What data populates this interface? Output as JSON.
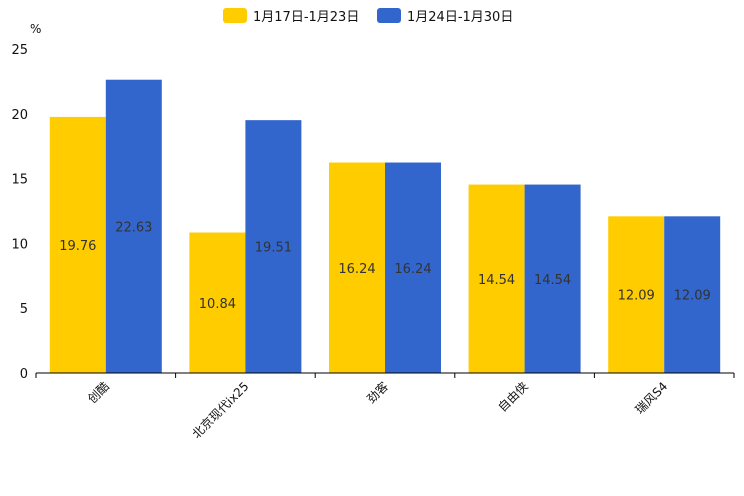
{
  "chart_data": {
    "type": "bar",
    "unit_label": "%",
    "categories": [
      "创酷",
      "北京现代ix25",
      "劲客",
      "自由侠",
      "瑞风S4"
    ],
    "series": [
      {
        "name": "1月17日-1月23日",
        "color": "#FFCC00",
        "values": [
          19.76,
          10.84,
          16.24,
          14.54,
          12.09
        ]
      },
      {
        "name": "1月24日-1月30日",
        "color": "#3366CC",
        "values": [
          22.63,
          19.51,
          16.24,
          14.54,
          12.09
        ]
      }
    ],
    "ylim": [
      0,
      25
    ],
    "yticks": [
      0,
      5,
      10,
      15,
      20,
      25
    ],
    "legend_position": "top-center",
    "grid": false
  }
}
